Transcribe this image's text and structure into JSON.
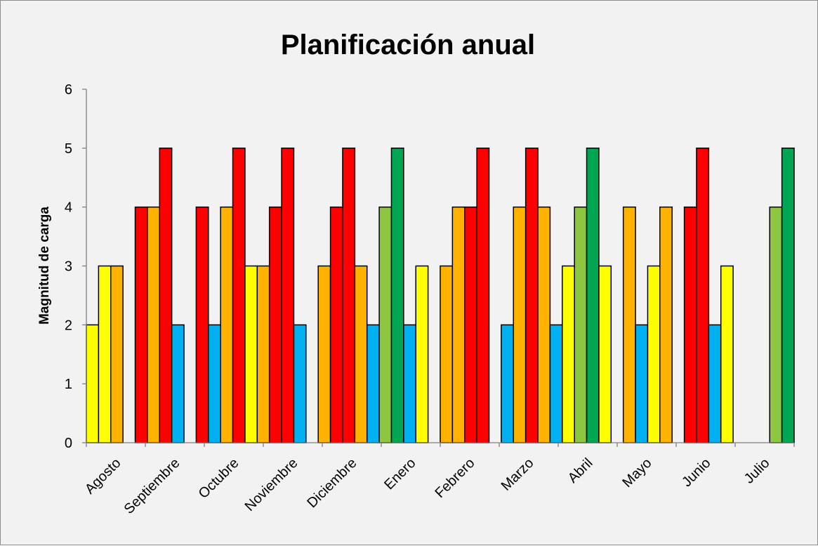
{
  "chart_data": {
    "type": "bar",
    "title": "Planificación anual",
    "xlabel": "",
    "ylabel": "Magnitud de carga",
    "ylim": [
      0,
      6
    ],
    "yticks": [
      "0",
      "1",
      "2",
      "3",
      "4",
      "5",
      "6"
    ],
    "categories": [
      "Agosto",
      "Septiembre",
      "Octubre",
      "Noviembre",
      "Diciembre",
      "Enero",
      "Febrero",
      "Marzo",
      "Abril",
      "Mayo",
      "Junio",
      "Julio"
    ],
    "colors": {
      "yellow": "#ffff00",
      "orange": "#ffb300",
      "red": "#ff0000",
      "blue": "#00b0f0",
      "lightgreen": "#8dc63f",
      "green": "#00a651"
    },
    "weeks": [
      {
        "value": 2,
        "color": "yellow"
      },
      {
        "value": 3,
        "color": "yellow"
      },
      {
        "value": 3,
        "color": "orange"
      },
      {
        "value": null,
        "color": ""
      },
      {
        "value": 4,
        "color": "red"
      },
      {
        "value": 4,
        "color": "orange"
      },
      {
        "value": 5,
        "color": "red"
      },
      {
        "value": 2,
        "color": "blue"
      },
      {
        "value": null,
        "color": ""
      },
      {
        "value": 4,
        "color": "red"
      },
      {
        "value": 2,
        "color": "blue"
      },
      {
        "value": 4,
        "color": "orange"
      },
      {
        "value": 5,
        "color": "red"
      },
      {
        "value": 3,
        "color": "yellow"
      },
      {
        "value": 3,
        "color": "orange"
      },
      {
        "value": 4,
        "color": "red"
      },
      {
        "value": 5,
        "color": "red"
      },
      {
        "value": 2,
        "color": "blue"
      },
      {
        "value": null,
        "color": ""
      },
      {
        "value": 3,
        "color": "orange"
      },
      {
        "value": 4,
        "color": "red"
      },
      {
        "value": 5,
        "color": "red"
      },
      {
        "value": 3,
        "color": "orange"
      },
      {
        "value": 2,
        "color": "blue"
      },
      {
        "value": 4,
        "color": "lightgreen"
      },
      {
        "value": 5,
        "color": "green"
      },
      {
        "value": 2,
        "color": "blue"
      },
      {
        "value": 3,
        "color": "yellow"
      },
      {
        "value": null,
        "color": ""
      },
      {
        "value": 3,
        "color": "orange"
      },
      {
        "value": 4,
        "color": "orange"
      },
      {
        "value": 4,
        "color": "red"
      },
      {
        "value": 5,
        "color": "red"
      },
      {
        "value": null,
        "color": ""
      },
      {
        "value": 2,
        "color": "blue"
      },
      {
        "value": 4,
        "color": "orange"
      },
      {
        "value": 5,
        "color": "red"
      },
      {
        "value": 4,
        "color": "orange"
      },
      {
        "value": 2,
        "color": "blue"
      },
      {
        "value": 3,
        "color": "yellow"
      },
      {
        "value": 4,
        "color": "lightgreen"
      },
      {
        "value": 5,
        "color": "green"
      },
      {
        "value": 3,
        "color": "yellow"
      },
      {
        "value": null,
        "color": ""
      },
      {
        "value": 4,
        "color": "orange"
      },
      {
        "value": 2,
        "color": "blue"
      },
      {
        "value": 3,
        "color": "yellow"
      },
      {
        "value": 4,
        "color": "orange"
      },
      {
        "value": null,
        "color": ""
      },
      {
        "value": 4,
        "color": "red"
      },
      {
        "value": 5,
        "color": "red"
      },
      {
        "value": 2,
        "color": "blue"
      },
      {
        "value": 3,
        "color": "yellow"
      },
      {
        "value": null,
        "color": ""
      },
      {
        "value": null,
        "color": ""
      },
      {
        "value": null,
        "color": ""
      },
      {
        "value": 4,
        "color": "lightgreen"
      },
      {
        "value": 5,
        "color": "green"
      }
    ]
  }
}
